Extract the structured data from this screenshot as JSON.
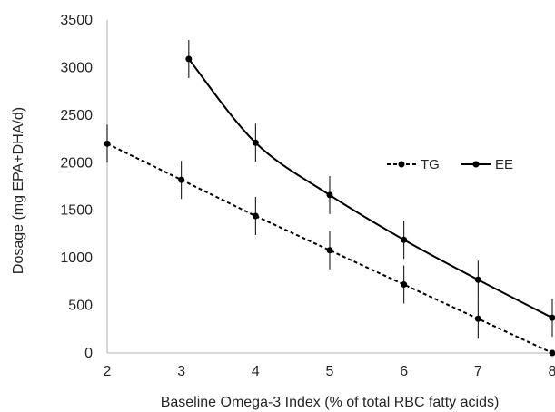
{
  "chart_data": {
    "type": "line",
    "title": "",
    "xlabel": "Baseline Omega-3 Index (% of total RBC fatty acids)",
    "ylabel": "Dosage (mg EPA+DHA/d)",
    "xlim": [
      2,
      8
    ],
    "ylim": [
      0,
      3500
    ],
    "xticks": [
      "2",
      "3",
      "4",
      "5",
      "6",
      "7",
      "8"
    ],
    "yticks": [
      "0",
      "500",
      "1000",
      "1500",
      "2000",
      "2500",
      "3000",
      "3500"
    ],
    "grid": false,
    "legend_position": "right",
    "series": [
      {
        "name": "TG",
        "line_style": "dashed",
        "color": "#000000",
        "points": [
          {
            "x": 2,
            "y": 2200,
            "err": 200
          },
          {
            "x": 3,
            "y": 1820,
            "err": 200
          },
          {
            "x": 4,
            "y": 1440,
            "err": 200
          },
          {
            "x": 5,
            "y": 1080,
            "err": 200
          },
          {
            "x": 6,
            "y": 720,
            "err": 200
          },
          {
            "x": 7,
            "y": 360,
            "err": 210
          },
          {
            "x": 8,
            "y": 0,
            "err": 0
          }
        ]
      },
      {
        "name": "EE",
        "line_style": "solid",
        "color": "#000000",
        "points": [
          {
            "x": 3.1,
            "y": 3090,
            "err": 200
          },
          {
            "x": 4,
            "y": 2210,
            "err": 200
          },
          {
            "x": 5,
            "y": 1660,
            "err": 200
          },
          {
            "x": 6,
            "y": 1190,
            "err": 200
          },
          {
            "x": 7,
            "y": 770,
            "err": 200
          },
          {
            "x": 8,
            "y": 370,
            "err": 200
          }
        ]
      }
    ]
  }
}
